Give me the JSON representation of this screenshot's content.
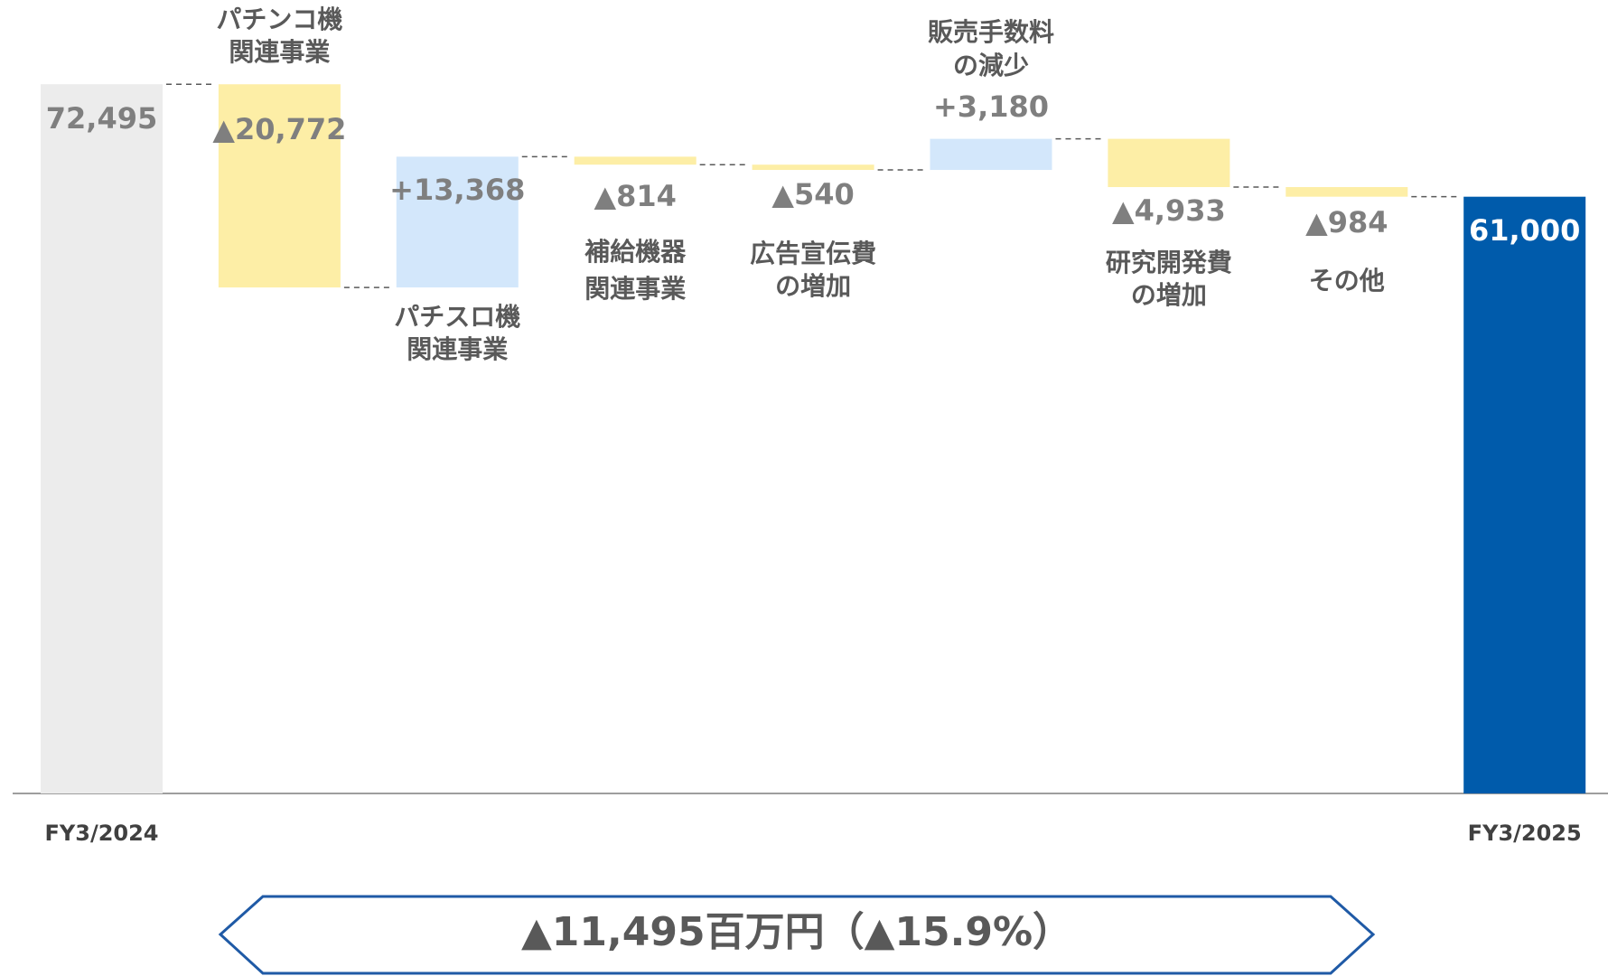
{
  "chart_data": {
    "type": "waterfall",
    "categories": [
      "FY3/2024",
      [
        "パチンコ機",
        "関連事業"
      ],
      [
        "パチスロ機",
        "関連事業"
      ],
      [
        "補給機器",
        "関連事業"
      ],
      [
        "広告宣伝費",
        "の増加"
      ],
      [
        "販売手数料",
        "の減少"
      ],
      [
        "研究開発費",
        "の増加"
      ],
      [
        "その他"
      ],
      "FY3/2025"
    ],
    "values": [
      72495,
      -20772,
      13368,
      -814,
      -540,
      3180,
      -4933,
      -984,
      61000
    ],
    "value_labels": [
      "72,495",
      "▲20,772",
      "+13,368",
      "▲814",
      "▲540",
      "+3,180",
      "▲4,933",
      "▲984",
      "61,000"
    ],
    "colors": [
      "#ececec",
      "#fdeea6",
      "#d3e7fb",
      "#fdeea6",
      "#fdeea6",
      "#d3e7fb",
      "#fdeea6",
      "#fdeea6",
      "#005bab"
    ],
    "ylim": [
      0,
      80000
    ],
    "annotation": "▲11,495百万円（▲15.9%）"
  }
}
